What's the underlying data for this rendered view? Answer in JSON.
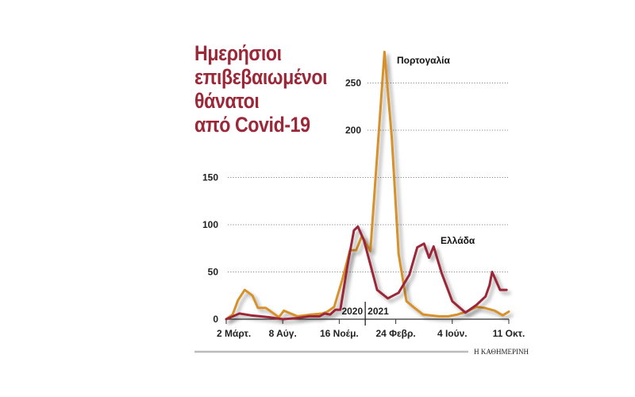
{
  "chart_data": {
    "type": "line",
    "title_lines": [
      "Ημερήσιοι",
      "επιβεβαιωμένοι",
      "θάνατοι",
      "από Covid-19"
    ],
    "xlabel": "",
    "ylabel": "",
    "ylim": [
      0,
      290
    ],
    "yticks": [
      0,
      50,
      100,
      150,
      200,
      250
    ],
    "grid": true,
    "x_ticks": [
      {
        "date": "2020-03-02",
        "label": "2 Μάρτ."
      },
      {
        "date": "2020-08-08",
        "label": "8 Αύγ."
      },
      {
        "date": "2020-11-16",
        "label": "16 Νοέμ."
      },
      {
        "date": "2021-02-24",
        "label": "24 Φεβρ."
      },
      {
        "date": "2021-06-04",
        "label": "4 Ιούν."
      },
      {
        "date": "2021-10-11",
        "label": "11 Οκτ."
      }
    ],
    "year_divider": {
      "date": "2021-01-01",
      "left_label": "2020",
      "right_label": "2021"
    },
    "series": [
      {
        "name": "Πορτογαλία",
        "color": "#d6912c",
        "points": [
          [
            "2020-03-02",
            0
          ],
          [
            "2020-03-20",
            5
          ],
          [
            "2020-04-04",
            20
          ],
          [
            "2020-04-23",
            31
          ],
          [
            "2020-05-15",
            25
          ],
          [
            "2020-05-30",
            12
          ],
          [
            "2020-06-21",
            12
          ],
          [
            "2020-07-10",
            7
          ],
          [
            "2020-07-28",
            2
          ],
          [
            "2020-08-10",
            9
          ],
          [
            "2020-08-22",
            6
          ],
          [
            "2020-09-03",
            3
          ],
          [
            "2020-09-28",
            5
          ],
          [
            "2020-10-17",
            6
          ],
          [
            "2020-10-26",
            8
          ],
          [
            "2020-11-07",
            13
          ],
          [
            "2020-11-21",
            41
          ],
          [
            "2020-12-05",
            73
          ],
          [
            "2020-12-16",
            73
          ],
          [
            "2020-12-26",
            88
          ],
          [
            "2021-01-10",
            72
          ],
          [
            "2021-02-04",
            283
          ],
          [
            "2021-02-17",
            192
          ],
          [
            "2021-03-01",
            69
          ],
          [
            "2021-03-15",
            19
          ],
          [
            "2021-03-29",
            12
          ],
          [
            "2021-04-13",
            5
          ],
          [
            "2021-05-11",
            3
          ],
          [
            "2021-05-28",
            3
          ],
          [
            "2021-06-16",
            5
          ],
          [
            "2021-07-07",
            8
          ],
          [
            "2021-07-29",
            13
          ],
          [
            "2021-08-16",
            12
          ],
          [
            "2021-09-09",
            9
          ],
          [
            "2021-09-27",
            4
          ],
          [
            "2021-10-11",
            8
          ]
        ]
      },
      {
        "name": "Ελλάδα",
        "color": "#9b2838",
        "points": [
          [
            "2020-03-02",
            0
          ],
          [
            "2020-04-08",
            6
          ],
          [
            "2020-05-11",
            4
          ],
          [
            "2020-06-06",
            3
          ],
          [
            "2020-07-02",
            2
          ],
          [
            "2020-07-21",
            1
          ],
          [
            "2020-08-08",
            0
          ],
          [
            "2020-08-31",
            1
          ],
          [
            "2020-09-24",
            3
          ],
          [
            "2020-10-12",
            3
          ],
          [
            "2020-10-21",
            6
          ],
          [
            "2020-10-31",
            5
          ],
          [
            "2020-11-09",
            10
          ],
          [
            "2020-11-18",
            10
          ],
          [
            "2020-11-30",
            55
          ],
          [
            "2020-12-12",
            94
          ],
          [
            "2020-12-19",
            98
          ],
          [
            "2020-12-30",
            83
          ],
          [
            "2021-01-22",
            31
          ],
          [
            "2021-02-10",
            22
          ],
          [
            "2021-03-01",
            28
          ],
          [
            "2021-03-20",
            47
          ],
          [
            "2021-04-03",
            76
          ],
          [
            "2021-04-15",
            80
          ],
          [
            "2021-04-24",
            65
          ],
          [
            "2021-05-02",
            77
          ],
          [
            "2021-05-16",
            49
          ],
          [
            "2021-06-04",
            19
          ],
          [
            "2021-07-04",
            7
          ],
          [
            "2021-07-29",
            15
          ],
          [
            "2021-08-19",
            24
          ],
          [
            "2021-08-28",
            36
          ],
          [
            "2021-09-03",
            50
          ],
          [
            "2021-09-21",
            31
          ],
          [
            "2021-10-06",
            31
          ]
        ]
      }
    ],
    "source": "Η ΚΑΘΗΜΕΡΙΝΗ"
  }
}
